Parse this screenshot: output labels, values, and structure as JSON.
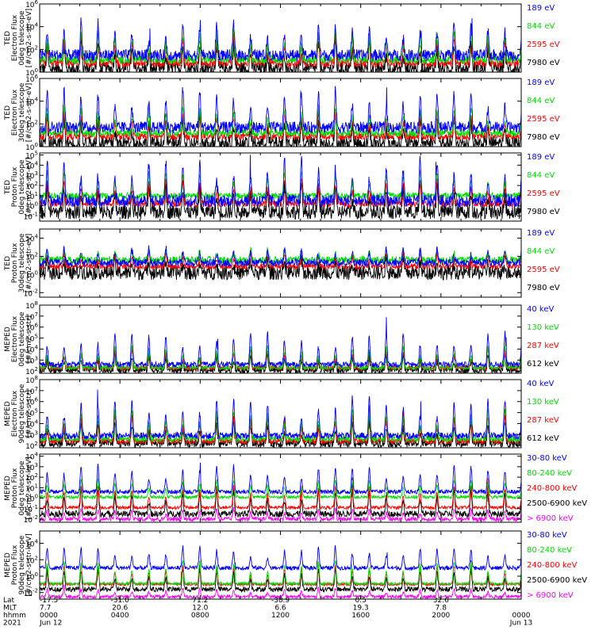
{
  "chart_data": [
    {
      "type": "line",
      "ylabel": [
        "TED",
        "Electron Flux",
        "0deg telescope",
        "[#/cm2-s-str-eV]"
      ],
      "yticks": [
        "10^0",
        "10^2",
        "10^4",
        "10^6"
      ],
      "ytick_values": [
        0,
        2,
        4,
        6
      ],
      "ylim_log10": [
        0,
        6
      ],
      "series": [
        {
          "name": "7980 eV",
          "color": "#000000",
          "base": 0.3,
          "peak": 2.5,
          "noise": 0.6
        },
        {
          "name": "2595 eV",
          "color": "#ff0000",
          "base": 0.8,
          "peak": 3.2,
          "noise": 0.35
        },
        {
          "name": "844 eV",
          "color": "#00dd00",
          "base": 1.1,
          "peak": 3.6,
          "noise": 0.35
        },
        {
          "name": "189 eV",
          "color": "#0000ff",
          "base": 1.5,
          "peak": 4.4,
          "noise": 0.5
        }
      ]
    },
    {
      "type": "line",
      "ylabel": [
        "TED",
        "Electron Flux",
        "30deg telescope",
        "[#/cm2-s-str-eV]"
      ],
      "yticks": [
        "10^0",
        "10^2",
        "10^4",
        "10^6"
      ],
      "ytick_values": [
        0,
        2,
        4,
        6
      ],
      "ylim_log10": [
        0,
        6
      ],
      "series": [
        {
          "name": "7980 eV",
          "color": "#000000",
          "base": 0.3,
          "peak": 2.4,
          "noise": 0.6
        },
        {
          "name": "2595 eV",
          "color": "#ff0000",
          "base": 0.9,
          "peak": 3.0,
          "noise": 0.3
        },
        {
          "name": "844 eV",
          "color": "#00dd00",
          "base": 1.2,
          "peak": 3.5,
          "noise": 0.3
        },
        {
          "name": "189 eV",
          "color": "#0000ff",
          "base": 1.7,
          "peak": 5.0,
          "noise": 0.5
        }
      ]
    },
    {
      "type": "line",
      "ylabel": [
        "TED",
        "Proton Flux",
        "0deg telescope",
        "[#/cm2-s-str-eV]"
      ],
      "yticks": [
        "10^-1",
        "10^0",
        "10^1",
        "10^2",
        "10^3",
        "10^4",
        "10^5"
      ],
      "ytick_values": [
        -1,
        0,
        1,
        2,
        3,
        4,
        5
      ],
      "ylim_log10": [
        -1.5,
        5.2
      ],
      "series": [
        {
          "name": "7980 eV",
          "color": "#000000",
          "base": -0.6,
          "peak": 2.0,
          "noise": 0.7
        },
        {
          "name": "2595 eV",
          "color": "#ff0000",
          "base": 0.2,
          "peak": 2.6,
          "noise": 0.3
        },
        {
          "name": "844 eV",
          "color": "#00dd00",
          "base": 1.0,
          "peak": 3.4,
          "noise": 0.3
        },
        {
          "name": "189 eV",
          "color": "#0000ff",
          "base": 0.5,
          "peak": 4.5,
          "noise": 0.6
        }
      ]
    },
    {
      "type": "line",
      "ylabel": [
        "TED",
        "Proton Flux",
        "30deg telescope",
        "[#/cm2-s-str-eV]"
      ],
      "yticks": [
        "10^-2",
        "10^0",
        "10^2",
        "10^4"
      ],
      "ytick_values": [
        -2,
        0,
        2,
        4
      ],
      "ylim_log10": [
        -2.5,
        5
      ],
      "series": [
        {
          "name": "7980 eV",
          "color": "#000000",
          "base": 0.2,
          "peak": 1.6,
          "noise": 0.8
        },
        {
          "name": "2595 eV",
          "color": "#ff0000",
          "base": 0.9,
          "peak": 2.4,
          "noise": 0.3
        },
        {
          "name": "844 eV",
          "color": "#00dd00",
          "base": 1.6,
          "peak": 2.8,
          "noise": 0.4
        },
        {
          "name": "189 eV",
          "color": "#0000ff",
          "base": 1.3,
          "peak": 3.0,
          "noise": 0.4
        }
      ]
    },
    {
      "type": "line",
      "ylabel": [
        "MEPED",
        "Electron Flux",
        "0deg telescope",
        "[#/cm2-s-str]"
      ],
      "yticks": [
        "10^2",
        "10^3",
        "10^4",
        "10^5",
        "10^6",
        "10^7",
        "10^8"
      ],
      "ytick_values": [
        2,
        3,
        4,
        5,
        6,
        7,
        8
      ],
      "ylim_log10": [
        1.8,
        8
      ],
      "series": [
        {
          "name": "612 keV",
          "color": "#000000",
          "base": 2.1,
          "peak": 3.4,
          "noise": 0.3
        },
        {
          "name": "287 keV",
          "color": "#ff0000",
          "base": 2.3,
          "peak": 3.9,
          "noise": 0.2
        },
        {
          "name": "130 keV",
          "color": "#00dd00",
          "base": 2.3,
          "peak": 4.3,
          "noise": 0.15
        },
        {
          "name": "40 keV",
          "color": "#0000ff",
          "base": 2.6,
          "peak": 5.6,
          "noise": 0.25
        }
      ]
    },
    {
      "type": "line",
      "ylabel": [
        "MEPED",
        "Electron Flux",
        "90deg telescope",
        "[#/cm2-s-str]"
      ],
      "yticks": [
        "10^2",
        "10^3",
        "10^4",
        "10^5",
        "10^6",
        "10^7",
        "10^8"
      ],
      "ytick_values": [
        2,
        3,
        4,
        5,
        6,
        7,
        8
      ],
      "ylim_log10": [
        1.8,
        8
      ],
      "series": [
        {
          "name": "612 keV",
          "color": "#000000",
          "base": 2.2,
          "peak": 4.0,
          "noise": 0.35
        },
        {
          "name": "287 keV",
          "color": "#ff0000",
          "base": 2.4,
          "peak": 4.7,
          "noise": 0.25
        },
        {
          "name": "130 keV",
          "color": "#00dd00",
          "base": 2.6,
          "peak": 5.2,
          "noise": 0.25
        },
        {
          "name": "40 keV",
          "color": "#0000ff",
          "base": 2.9,
          "peak": 6.3,
          "noise": 0.3
        }
      ]
    },
    {
      "type": "line",
      "ylabel": [
        "MEPED",
        "Proton Flux",
        "0deg telescope",
        "[#/cm2-s-str-keV]"
      ],
      "yticks": [
        "10^-2",
        "10^-1",
        "10^0",
        "10^1",
        "10^2",
        "10^3",
        "10^4"
      ],
      "ytick_values": [
        -2,
        -1,
        0,
        1,
        2,
        3,
        4
      ],
      "ylim_log10": [
        -2.3,
        4.2
      ],
      "series": [
        {
          "name": "> 6900 keV",
          "color": "#ff00ff",
          "base": -2.0,
          "peak": -1.0,
          "noise": 0.2
        },
        {
          "name": "2500-6900 keV",
          "color": "#000000",
          "base": -1.5,
          "peak": 0.8,
          "noise": 0.3
        },
        {
          "name": "240-800 keV",
          "color": "#ff0000",
          "base": -0.9,
          "peak": 1.2,
          "noise": 0.15
        },
        {
          "name": "80-240 keV",
          "color": "#00dd00",
          "base": 0.1,
          "peak": 1.8,
          "noise": 0.15
        },
        {
          "name": "30-80 keV",
          "color": "#0000ff",
          "base": 0.6,
          "peak": 3.1,
          "noise": 0.2
        }
      ]
    },
    {
      "type": "line",
      "ylabel": [
        "MEPED",
        "Proton Flux",
        "90deg telescope",
        "[#/cm2-s-str-keV]"
      ],
      "yticks": [
        "10^-2",
        "10^0",
        "10^2",
        "10^4"
      ],
      "ytick_values": [
        -2,
        0,
        2,
        4
      ],
      "ylim_log10": [
        -2.8,
        5.5
      ],
      "series": [
        {
          "name": "> 6900 keV",
          "color": "#ff00ff",
          "base": -2.5,
          "peak": -1.5,
          "noise": 0.2
        },
        {
          "name": "2500-6900 keV",
          "color": "#000000",
          "base": -1.6,
          "peak": 0.8,
          "noise": 0.3
        },
        {
          "name": "240-800 keV",
          "color": "#ff0000",
          "base": -1.0,
          "peak": 1.4,
          "noise": 0.15
        },
        {
          "name": "80-240 keV",
          "color": "#00dd00",
          "base": -0.9,
          "peak": 1.9,
          "noise": 0.15
        },
        {
          "name": "30-80 keV",
          "color": "#0000ff",
          "base": 1.0,
          "peak": 3.6,
          "noise": 0.25
        }
      ]
    }
  ],
  "x_axis": {
    "row_labels": [
      "Lat",
      "MLT",
      "hhmm",
      "2021"
    ],
    "ticks": [
      {
        "hour": 0,
        "lat": "-17.5",
        "mlt": "7.7",
        "hhmm": "0000",
        "date": "Jun 12"
      },
      {
        "hour": 4,
        "lat": "-31.0",
        "mlt": "20.6",
        "hhmm": "0400",
        "date": ""
      },
      {
        "hour": 8,
        "lat": "71.2",
        "mlt": "12.0",
        "hhmm": "0800",
        "date": ""
      },
      {
        "hour": 12,
        "lat": "-38.9",
        "mlt": "6.6",
        "hhmm": "1200",
        "date": ""
      },
      {
        "hour": 16,
        "lat": "0.5",
        "mlt": "19.3",
        "hhmm": "1600",
        "date": ""
      },
      {
        "hour": 20,
        "lat": "32.6",
        "mlt": "7.8",
        "hhmm": "2000",
        "date": ""
      },
      {
        "hour": 24,
        "lat": "",
        "mlt": "",
        "hhmm": "0000",
        "date": "Jun 13"
      }
    ],
    "xlim_hours": [
      0,
      24
    ],
    "orbit_period_hours": 1.69
  }
}
